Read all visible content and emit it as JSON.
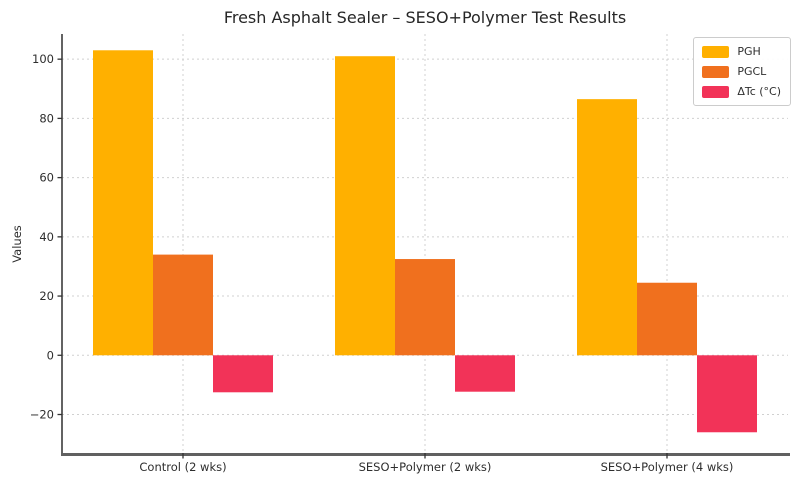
{
  "chart_data": {
    "type": "bar",
    "title": "Fresh Asphalt Sealer – SESO+Polymer Test Results",
    "xlabel": "",
    "ylabel": "Values",
    "categories": [
      "Control (2 wks)",
      "SESO+Polymer (2 wks)",
      "SESO+Polymer (4 wks)"
    ],
    "series": [
      {
        "name": "PGH",
        "color": "#FFB000",
        "values": [
          103.0,
          101.0,
          86.5
        ]
      },
      {
        "name": "PGCL",
        "color": "#F0701E",
        "values": [
          34.0,
          32.5,
          24.5
        ]
      },
      {
        "name": "ΔTc (°C)",
        "color": "#F23358",
        "values": [
          -12.5,
          -12.3,
          -26.0
        ]
      }
    ],
    "yticks": [
      -20,
      0,
      20,
      40,
      60,
      80,
      100
    ],
    "ylim": [
      -33.0,
      108.5
    ],
    "grid": true,
    "grid_style": "dashed",
    "legend_position": "upper right",
    "colors": {
      "grid": "#d0d0d0",
      "left_spine": "#3c3c3c",
      "bottom_spine": "#606060",
      "tick": "#333333",
      "text": "#2e2e2e",
      "title_text": "#262626",
      "background": "#ffffff"
    }
  }
}
